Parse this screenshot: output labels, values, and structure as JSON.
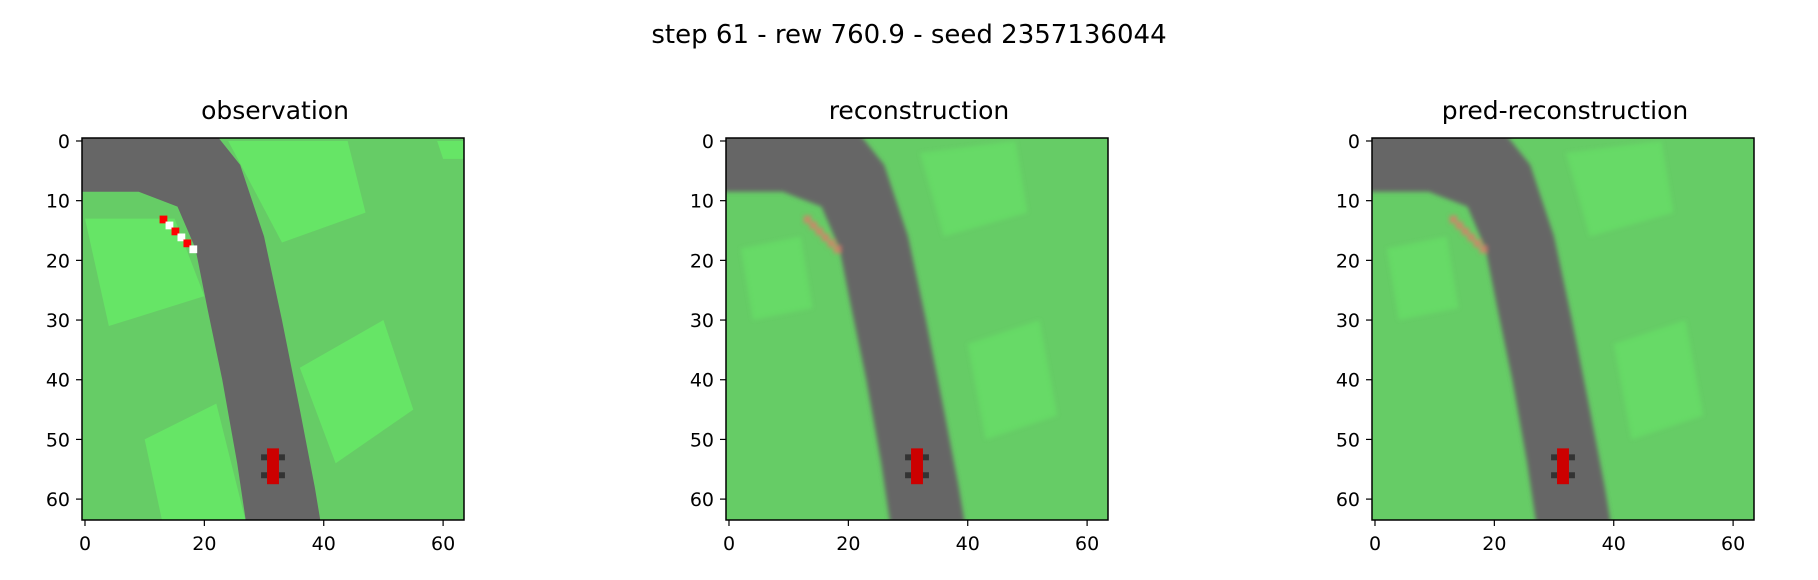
{
  "figure": {
    "suptitle": "step 61 - rew 760.9 - seed 2357136044"
  },
  "panels": [
    {
      "title": "observation",
      "variant": "obs"
    },
    {
      "title": "reconstruction",
      "variant": "rec"
    },
    {
      "title": "pred-reconstruction",
      "variant": "pred"
    }
  ],
  "axes": {
    "x_ticks": [
      "0",
      "20",
      "40",
      "60"
    ],
    "y_ticks": [
      "0",
      "10",
      "20",
      "30",
      "40",
      "50",
      "60"
    ],
    "xlim": [
      -0.5,
      63.5
    ],
    "ylim": [
      63.5,
      -0.5
    ]
  },
  "colors": {
    "grass": "#66cc66",
    "grass_light": "#66e566",
    "road": "#666666",
    "road_dark": "#5c5c5c",
    "car": "#cc0000",
    "curb_red": "#ff0000",
    "curb_white": "#ffffff"
  }
}
